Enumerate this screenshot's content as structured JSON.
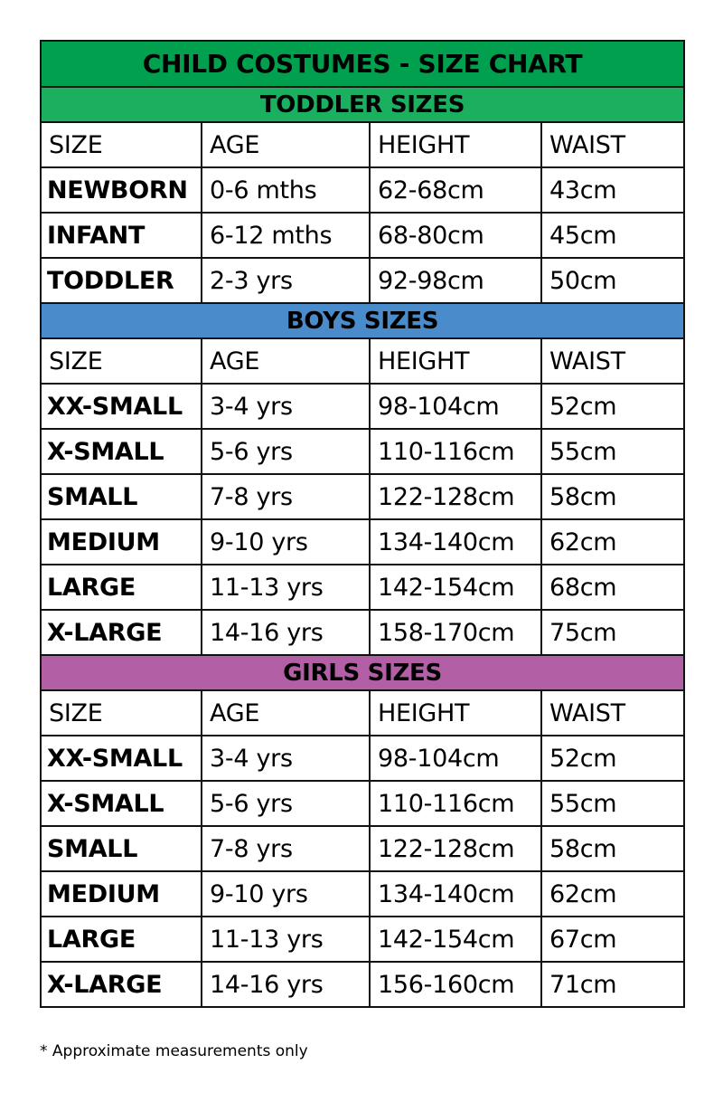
{
  "title": "CHILD COSTUMES - SIZE CHART",
  "colors": {
    "title": "#00a04e",
    "toddler": "#1bb060",
    "boys": "#4a8bcb",
    "girls": "#b25fa6"
  },
  "columns": [
    "SIZE",
    "AGE",
    "HEIGHT",
    "WAIST"
  ],
  "sections": [
    {
      "label": "TODDLER SIZES",
      "rows": [
        [
          "NEWBORN",
          "0-6 mths",
          "62-68cm",
          "43cm"
        ],
        [
          "INFANT",
          "6-12 mths",
          "68-80cm",
          "45cm"
        ],
        [
          "TODDLER",
          "2-3 yrs",
          "92-98cm",
          "50cm"
        ]
      ]
    },
    {
      "label": "BOYS SIZES",
      "rows": [
        [
          "XX-SMALL",
          "3-4 yrs",
          "98-104cm",
          "52cm"
        ],
        [
          "X-SMALL",
          "5-6 yrs",
          "110-116cm",
          "55cm"
        ],
        [
          "SMALL",
          "7-8 yrs",
          "122-128cm",
          "58cm"
        ],
        [
          "MEDIUM",
          "9-10 yrs",
          "134-140cm",
          "62cm"
        ],
        [
          "LARGE",
          "11-13 yrs",
          "142-154cm",
          "68cm"
        ],
        [
          "X-LARGE",
          "14-16 yrs",
          "158-170cm",
          "75cm"
        ]
      ]
    },
    {
      "label": "GIRLS SIZES",
      "rows": [
        [
          "XX-SMALL",
          "3-4 yrs",
          "98-104cm",
          "52cm"
        ],
        [
          "X-SMALL",
          "5-6 yrs",
          "110-116cm",
          "55cm"
        ],
        [
          "SMALL",
          "7-8 yrs",
          "122-128cm",
          "58cm"
        ],
        [
          "MEDIUM",
          "9-10 yrs",
          "134-140cm",
          "62cm"
        ],
        [
          "LARGE",
          "11-13 yrs",
          "142-154cm",
          "67cm"
        ],
        [
          "X-LARGE",
          "14-16 yrs",
          "156-160cm",
          "71cm"
        ]
      ]
    }
  ],
  "footnote": "* Approximate measurements only"
}
